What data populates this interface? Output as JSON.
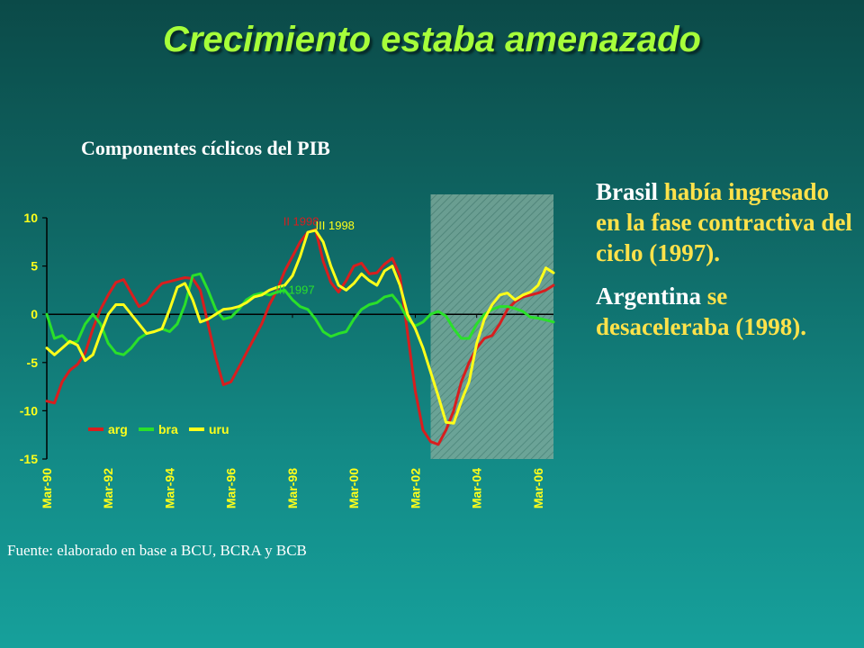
{
  "slide_title": "Crecimiento estaba amenazado",
  "side_text": {
    "p1": {
      "a": "Brasil ",
      "b": "había ingresado en la fase contractiva del ciclo (1997)."
    },
    "p2": {
      "a": "Argentina ",
      "b": "se desaceleraba (1998)."
    }
  },
  "source": "Fuente: elaborado en base a BCU, BCRA y BCB",
  "colors": {
    "arg": "#d81e1e",
    "bra": "#2ae02a",
    "uru": "#ffff1a",
    "shade": "#7aa89a",
    "text_highlight": "#ffe24a",
    "title": "#a6ff3a"
  },
  "chart_data": {
    "type": "line",
    "title": "Componentes cíclicos del PIB",
    "ylim": [
      -15,
      10
    ],
    "yticks": [
      10,
      5,
      0,
      -5,
      -10,
      -15
    ],
    "xlim": [
      1990.0,
      2006.5
    ],
    "xticks": [
      {
        "label": "Mar-90",
        "x": 1990.0
      },
      {
        "label": "Mar-92",
        "x": 1992.0
      },
      {
        "label": "Mar-94",
        "x": 1994.0
      },
      {
        "label": "Mar-96",
        "x": 1996.0
      },
      {
        "label": "Mar-98",
        "x": 1998.0
      },
      {
        "label": "Mar-00",
        "x": 2000.0
      },
      {
        "label": "Mar-02",
        "x": 2002.0
      },
      {
        "label": "Mar-04",
        "x": 2004.0
      },
      {
        "label": "Mar-06",
        "x": 2006.0
      }
    ],
    "forecast_shade": {
      "from": 2002.5,
      "to": 2006.5
    },
    "legend_position": "bottom-left",
    "series": [
      {
        "name": "arg",
        "color_key": "arg",
        "points": [
          [
            1990.0,
            -9
          ],
          [
            1990.25,
            -9.2
          ],
          [
            1990.5,
            -7
          ],
          [
            1990.75,
            -5.8
          ],
          [
            1991.0,
            -5.2
          ],
          [
            1991.25,
            -4
          ],
          [
            1991.5,
            -1.5
          ],
          [
            1991.75,
            0.5
          ],
          [
            1992.0,
            2
          ],
          [
            1992.25,
            3.3
          ],
          [
            1992.5,
            3.6
          ],
          [
            1992.75,
            2.2
          ],
          [
            1993.0,
            0.8
          ],
          [
            1993.25,
            1.2
          ],
          [
            1993.5,
            2.4
          ],
          [
            1993.75,
            3.2
          ],
          [
            1994.0,
            3.4
          ],
          [
            1994.25,
            3.6
          ],
          [
            1994.5,
            3.8
          ],
          [
            1994.75,
            3.7
          ],
          [
            1995.0,
            2.5
          ],
          [
            1995.25,
            -1
          ],
          [
            1995.5,
            -4.5
          ],
          [
            1995.75,
            -7.3
          ],
          [
            1996.0,
            -7
          ],
          [
            1996.25,
            -5.5
          ],
          [
            1996.5,
            -4
          ],
          [
            1996.75,
            -2.5
          ],
          [
            1997.0,
            -1
          ],
          [
            1997.25,
            1
          ],
          [
            1997.5,
            2.5
          ],
          [
            1997.75,
            4.5
          ],
          [
            1998.0,
            6
          ],
          [
            1998.25,
            7.5
          ],
          [
            1998.5,
            8.5
          ],
          [
            1998.75,
            8.8
          ],
          [
            1999.0,
            5.5
          ],
          [
            1999.25,
            3.3
          ],
          [
            1999.5,
            2.3
          ],
          [
            1999.75,
            3.5
          ],
          [
            2000.0,
            5
          ],
          [
            2000.25,
            5.3
          ],
          [
            2000.5,
            4.2
          ],
          [
            2000.75,
            4.3
          ],
          [
            2001.0,
            5.2
          ],
          [
            2001.25,
            5.8
          ],
          [
            2001.5,
            4
          ],
          [
            2001.75,
            -2
          ],
          [
            2002.0,
            -8
          ],
          [
            2002.25,
            -12
          ],
          [
            2002.5,
            -13.2
          ],
          [
            2002.75,
            -13.5
          ],
          [
            2003.0,
            -12
          ],
          [
            2003.25,
            -10
          ],
          [
            2003.5,
            -7
          ],
          [
            2003.75,
            -5
          ],
          [
            2004.0,
            -3.5
          ],
          [
            2004.25,
            -2.5
          ],
          [
            2004.5,
            -2.2
          ],
          [
            2004.75,
            -1
          ],
          [
            2005.0,
            0.5
          ],
          [
            2005.25,
            1.3
          ],
          [
            2005.5,
            1.8
          ],
          [
            2005.75,
            2
          ],
          [
            2006.0,
            2.2
          ],
          [
            2006.25,
            2.5
          ],
          [
            2006.5,
            3
          ]
        ]
      },
      {
        "name": "bra",
        "color_key": "bra",
        "points": [
          [
            1990.0,
            0
          ],
          [
            1990.25,
            -2.5
          ],
          [
            1990.5,
            -2.2
          ],
          [
            1990.75,
            -3
          ],
          [
            1991.0,
            -2.8
          ],
          [
            1991.25,
            -1
          ],
          [
            1991.5,
            0
          ],
          [
            1991.75,
            -1
          ],
          [
            1992.0,
            -3
          ],
          [
            1992.25,
            -4
          ],
          [
            1992.5,
            -4.2
          ],
          [
            1992.75,
            -3.5
          ],
          [
            1993.0,
            -2.5
          ],
          [
            1993.25,
            -2
          ],
          [
            1993.5,
            -1.8
          ],
          [
            1993.75,
            -1.5
          ],
          [
            1994.0,
            -1.8
          ],
          [
            1994.25,
            -1
          ],
          [
            1994.5,
            1
          ],
          [
            1994.75,
            4
          ],
          [
            1995.0,
            4.2
          ],
          [
            1995.25,
            2.5
          ],
          [
            1995.5,
            0.5
          ],
          [
            1995.75,
            -0.5
          ],
          [
            1996.0,
            -0.3
          ],
          [
            1996.25,
            0.5
          ],
          [
            1996.5,
            1.5
          ],
          [
            1996.75,
            2
          ],
          [
            1997.0,
            2.2
          ],
          [
            1997.25,
            2
          ],
          [
            1997.5,
            2.3
          ],
          [
            1997.75,
            2.5
          ],
          [
            1998.0,
            1.5
          ],
          [
            1998.25,
            0.8
          ],
          [
            1998.5,
            0.5
          ],
          [
            1998.75,
            -0.5
          ],
          [
            1999.0,
            -1.8
          ],
          [
            1999.25,
            -2.3
          ],
          [
            1999.5,
            -2
          ],
          [
            1999.75,
            -1.8
          ],
          [
            2000.0,
            -0.5
          ],
          [
            2000.25,
            0.5
          ],
          [
            2000.5,
            1
          ],
          [
            2000.75,
            1.2
          ],
          [
            2001.0,
            1.8
          ],
          [
            2001.25,
            2
          ],
          [
            2001.5,
            1
          ],
          [
            2001.75,
            -0.5
          ],
          [
            2002.0,
            -1.2
          ],
          [
            2002.25,
            -0.8
          ],
          [
            2002.5,
            0
          ],
          [
            2002.75,
            0.3
          ],
          [
            2003.0,
            -0.2
          ],
          [
            2003.25,
            -1.5
          ],
          [
            2003.5,
            -2.5
          ],
          [
            2003.75,
            -2.5
          ],
          [
            2004.0,
            -1
          ],
          [
            2004.25,
            0
          ],
          [
            2004.5,
            0.5
          ],
          [
            2004.75,
            0.8
          ],
          [
            2005.0,
            0.8
          ],
          [
            2005.25,
            0.6
          ],
          [
            2005.5,
            0.3
          ],
          [
            2005.75,
            -0.3
          ],
          [
            2006.0,
            -0.4
          ],
          [
            2006.25,
            -0.6
          ],
          [
            2006.5,
            -0.8
          ]
        ]
      },
      {
        "name": "uru",
        "color_key": "uru",
        "points": [
          [
            1990.0,
            -3.5
          ],
          [
            1990.25,
            -4.2
          ],
          [
            1990.5,
            -3.5
          ],
          [
            1990.75,
            -2.8
          ],
          [
            1991.0,
            -3.2
          ],
          [
            1991.25,
            -4.8
          ],
          [
            1991.5,
            -4.2
          ],
          [
            1991.75,
            -2
          ],
          [
            1992.0,
            0
          ],
          [
            1992.25,
            1
          ],
          [
            1992.5,
            1
          ],
          [
            1992.75,
            0
          ],
          [
            1993.0,
            -1
          ],
          [
            1993.25,
            -2
          ],
          [
            1993.5,
            -1.8
          ],
          [
            1993.75,
            -1.5
          ],
          [
            1994.0,
            0.5
          ],
          [
            1994.25,
            2.8
          ],
          [
            1994.5,
            3.2
          ],
          [
            1994.75,
            1.5
          ],
          [
            1995.0,
            -0.8
          ],
          [
            1995.25,
            -0.5
          ],
          [
            1995.5,
            0
          ],
          [
            1995.75,
            0.5
          ],
          [
            1996.0,
            0.6
          ],
          [
            1996.25,
            0.8
          ],
          [
            1996.5,
            1.2
          ],
          [
            1996.75,
            1.8
          ],
          [
            1997.0,
            2
          ],
          [
            1997.25,
            2.5
          ],
          [
            1997.5,
            2.8
          ],
          [
            1997.75,
            3
          ],
          [
            1998.0,
            4
          ],
          [
            1998.25,
            6
          ],
          [
            1998.5,
            8.5
          ],
          [
            1998.75,
            8.7
          ],
          [
            1999.0,
            7.5
          ],
          [
            1999.25,
            5
          ],
          [
            1999.5,
            3
          ],
          [
            1999.75,
            2.5
          ],
          [
            2000.0,
            3.2
          ],
          [
            2000.25,
            4.2
          ],
          [
            2000.5,
            3.5
          ],
          [
            2000.75,
            3
          ],
          [
            2001.0,
            4.5
          ],
          [
            2001.25,
            5
          ],
          [
            2001.5,
            3
          ],
          [
            2001.75,
            0
          ],
          [
            2002.0,
            -1.5
          ],
          [
            2002.25,
            -3.5
          ],
          [
            2002.5,
            -6
          ],
          [
            2002.75,
            -8.5
          ],
          [
            2003.0,
            -11.2
          ],
          [
            2003.25,
            -11.3
          ],
          [
            2003.5,
            -9
          ],
          [
            2003.75,
            -7
          ],
          [
            2004.0,
            -3
          ],
          [
            2004.25,
            -0.5
          ],
          [
            2004.5,
            1
          ],
          [
            2004.75,
            2
          ],
          [
            2005.0,
            2.2
          ],
          [
            2005.25,
            1.5
          ],
          [
            2005.5,
            2
          ],
          [
            2005.75,
            2.3
          ],
          [
            2006.0,
            3
          ],
          [
            2006.25,
            4.8
          ],
          [
            2006.5,
            4.3
          ]
        ]
      }
    ],
    "annotations": [
      {
        "text": "II 1998",
        "x": 1997.7,
        "y": 9.2,
        "color_key": "arg"
      },
      {
        "text": "III 1998",
        "x": 1998.75,
        "y": 8.8,
        "color_key": "uru"
      },
      {
        "text": "III 1997",
        "x": 1997.45,
        "y": 2.1,
        "color_key": "bra"
      }
    ]
  }
}
